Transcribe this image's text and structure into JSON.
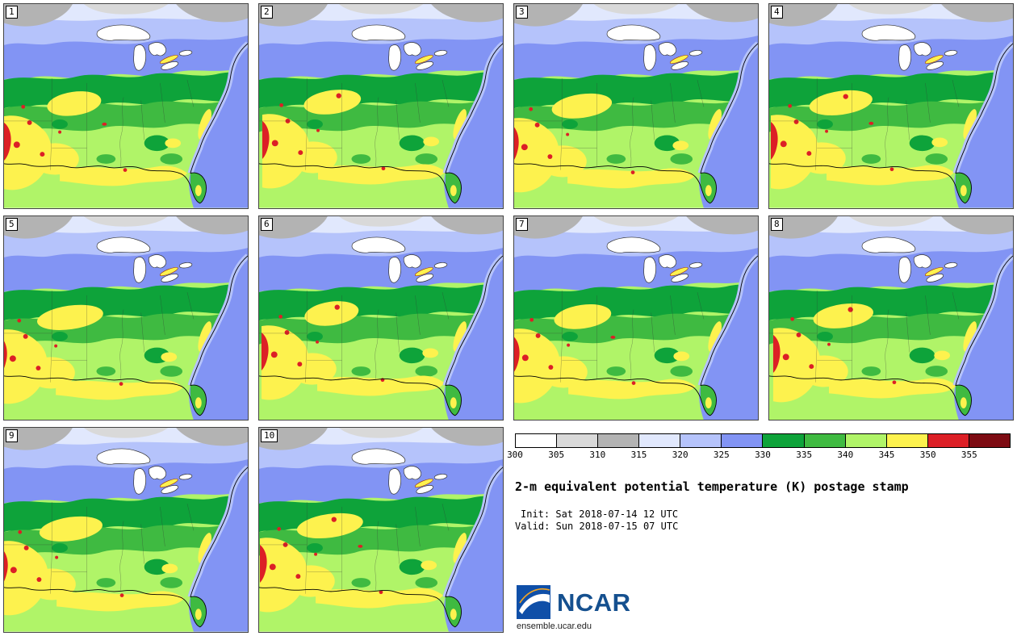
{
  "panels": [
    {
      "label": "1"
    },
    {
      "label": "2"
    },
    {
      "label": "3"
    },
    {
      "label": "4"
    },
    {
      "label": "5"
    },
    {
      "label": "6"
    },
    {
      "label": "7"
    },
    {
      "label": "8"
    },
    {
      "label": "9"
    },
    {
      "label": "10"
    }
  ],
  "legend": {
    "levels": [
      "300",
      "305",
      "310",
      "315",
      "320",
      "325",
      "330",
      "335",
      "340",
      "345",
      "350",
      "355"
    ],
    "colors": [
      "#ffffff",
      "#d9d9d9",
      "#b3b3b3",
      "#e1e8fd",
      "#b5c3fb",
      "#8294f4",
      "#0ea33a",
      "#3fba41",
      "#b0f468",
      "#fdf24e",
      "#dc1f26",
      "#7d0b12"
    ]
  },
  "info": {
    "title": "2-m equivalent potential temperature (K) postage stamp",
    "init": "Init: Sat 2018-07-14 12 UTC",
    "valid": "Valid: Sun 2018-07-15 07 UTC",
    "logo": "NCAR",
    "url": "ensemble.ucar.edu"
  }
}
